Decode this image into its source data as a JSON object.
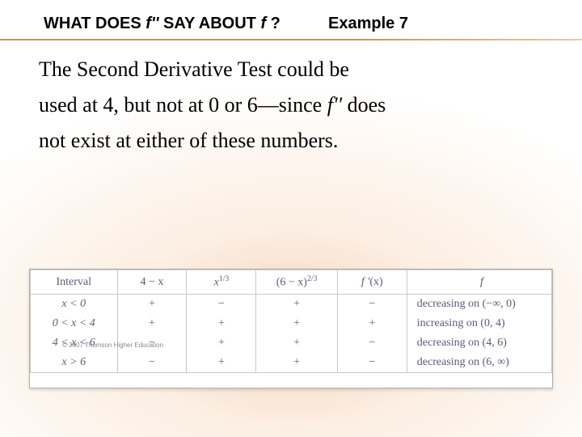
{
  "header": {
    "title_prefix": "WHAT DOES ",
    "title_fpp": "f''",
    "title_suffix": " SAY ABOUT ",
    "title_f": "f",
    "title_q": " ?",
    "example_label": "Example 7"
  },
  "body": {
    "line1": "The Second Derivative Test could be",
    "line2_a": "used at 4, but not at 0 or 6—since ",
    "line2_fpp": "f''",
    "line2_b": " does",
    "line3": "not exist at either of these numbers."
  },
  "table": {
    "headers": {
      "interval": "Interval",
      "c1": "4 − x",
      "c2_base": "x",
      "c2_exp": "1/3",
      "c3_base": "(6 − x)",
      "c3_exp": "2/3",
      "c4_f": "f ′",
      "c4_arg": "(x)",
      "f": "f"
    },
    "rows": [
      {
        "interval": "x < 0",
        "c1": "+",
        "c2": "−",
        "c3": "+",
        "c4": "−",
        "f": "decreasing on (−∞, 0)"
      },
      {
        "interval": "0 < x < 4",
        "c1": "+",
        "c2": "+",
        "c3": "+",
        "c4": "+",
        "f": "increasing on (0, 4)"
      },
      {
        "interval": "4 < x < 6",
        "c1": "−",
        "c2": "+",
        "c3": "+",
        "c4": "−",
        "f": "decreasing on (4, 6)"
      },
      {
        "interval": "x > 6",
        "c1": "−",
        "c2": "+",
        "c3": "+",
        "c4": "−",
        "f": "decreasing on (6, ∞)"
      }
    ]
  },
  "copyright": "© 2007 Thomson Higher Education"
}
